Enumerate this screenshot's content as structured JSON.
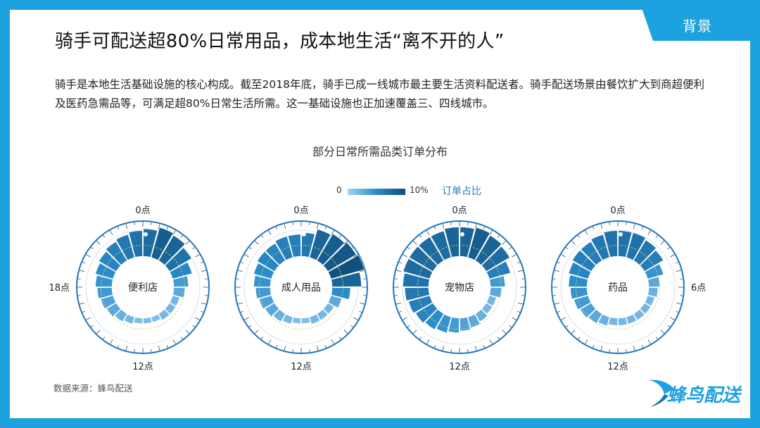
{
  "header": {
    "tab_label": "背景",
    "title": "骑手可配送超80%日常用品，成本地生活“离不开的人”"
  },
  "intro": "骑手是本地生活基础设施的核心构成。截至2018年底，骑手已成一线城市最主要生活资料配送者。骑手配送场景由餐饮扩大到商超便利及医药急需品等，可满足超80%日常生活所需。这一基础设施也正加速覆盖三、四线城市。",
  "colors": {
    "frame": "#1da1df",
    "scale_low": "#a5d3f0",
    "scale_mid": "#2b8ccc",
    "scale_high": "#0f4a76",
    "legend_label": "#2a7fb8"
  },
  "chart_data": {
    "type": "heatmap",
    "title": "部分日常所需品类订单分布",
    "legend": {
      "min_label": "0",
      "max_label": "10%",
      "label": "订单占比",
      "range": [
        0,
        10
      ]
    },
    "hour_labels": {
      "top": "0点",
      "left": "18点",
      "right": "6点",
      "bottom": "12点"
    },
    "hours": [
      0,
      1,
      2,
      3,
      4,
      5,
      6,
      7,
      8,
      9,
      10,
      11,
      12,
      13,
      14,
      15,
      16,
      17,
      18,
      19,
      20,
      21,
      22,
      23
    ],
    "charts": [
      {
        "category": "便利店",
        "values": [
          7.5,
          8.5,
          8,
          7,
          5.5,
          4,
          3,
          2,
          2,
          2,
          1.5,
          1.5,
          1.5,
          2,
          2.5,
          3,
          3.5,
          4,
          4.5,
          5,
          5.5,
          6,
          6.5,
          7
        ]
      },
      {
        "category": "成人用品",
        "values": [
          6.5,
          8,
          8.5,
          9,
          9.5,
          8,
          5,
          3,
          2,
          2,
          2,
          1.5,
          1.5,
          2,
          2.5,
          3,
          3.5,
          4,
          4.5,
          5,
          5.5,
          5.5,
          6,
          6
        ]
      },
      {
        "category": "宠物店",
        "values": [
          8,
          8.5,
          8,
          7.5,
          6,
          4,
          3,
          2,
          2,
          2.5,
          3,
          3.5,
          4,
          4.5,
          5,
          5.5,
          6,
          6.5,
          7,
          7.5,
          7.5,
          7.5,
          7.5,
          8
        ]
      },
      {
        "category": "药品",
        "values": [
          7,
          7,
          6.5,
          6,
          4.5,
          3,
          2.5,
          2,
          2,
          2,
          2,
          2,
          2,
          2.5,
          3,
          3.5,
          4,
          4.5,
          5,
          5.5,
          6,
          6,
          6.5,
          7
        ]
      }
    ]
  },
  "footer": {
    "source": "数据来源：蜂鸟配送",
    "brand": "蜂鸟配送"
  }
}
